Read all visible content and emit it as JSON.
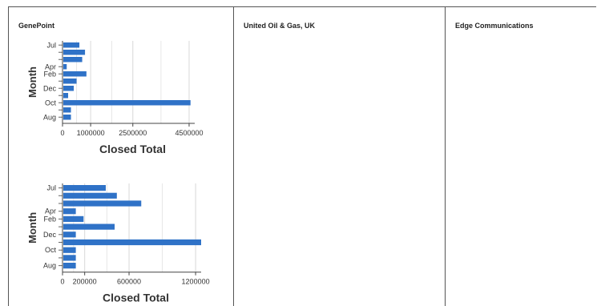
{
  "panels": [
    {
      "title": "GenePoint"
    },
    {
      "title": "United Oil & Gas, UK"
    },
    {
      "title": "Edge Communications"
    }
  ],
  "bar_color": "#2f72c7",
  "chart_data": [
    {
      "type": "bar",
      "orientation": "horizontal",
      "xlabel": "Closed Total",
      "ylabel": "Month",
      "categories": [
        "Jul",
        "",
        "",
        "Apr",
        "Feb",
        "",
        "Dec",
        "",
        "Oct",
        "",
        "Aug"
      ],
      "values": [
        600000,
        800000,
        700000,
        150000,
        850000,
        500000,
        400000,
        200000,
        4550000,
        300000,
        300000
      ],
      "xlim": [
        0,
        4700000
      ],
      "xticks": [
        0,
        1000000,
        2500000,
        4500000
      ],
      "xtick_labels": [
        "0",
        "1000000",
        "2500000",
        "4500000"
      ],
      "grid": true
    },
    {
      "type": "bar",
      "orientation": "horizontal",
      "xlabel": "Closed Total",
      "ylabel": "Month",
      "categories": [
        "Jul",
        "",
        "",
        "Apr",
        "Feb",
        "",
        "Dec",
        "",
        "Oct",
        "",
        "Aug"
      ],
      "values": [
        390000,
        490000,
        710000,
        120000,
        190000,
        470000,
        120000,
        1250000,
        120000,
        120000,
        120000
      ],
      "xlim": [
        0,
        1250000
      ],
      "xticks": [
        0,
        200000,
        600000,
        1200000
      ],
      "xtick_labels": [
        "0",
        "200000",
        "600000",
        "1200000"
      ],
      "grid": true
    }
  ]
}
